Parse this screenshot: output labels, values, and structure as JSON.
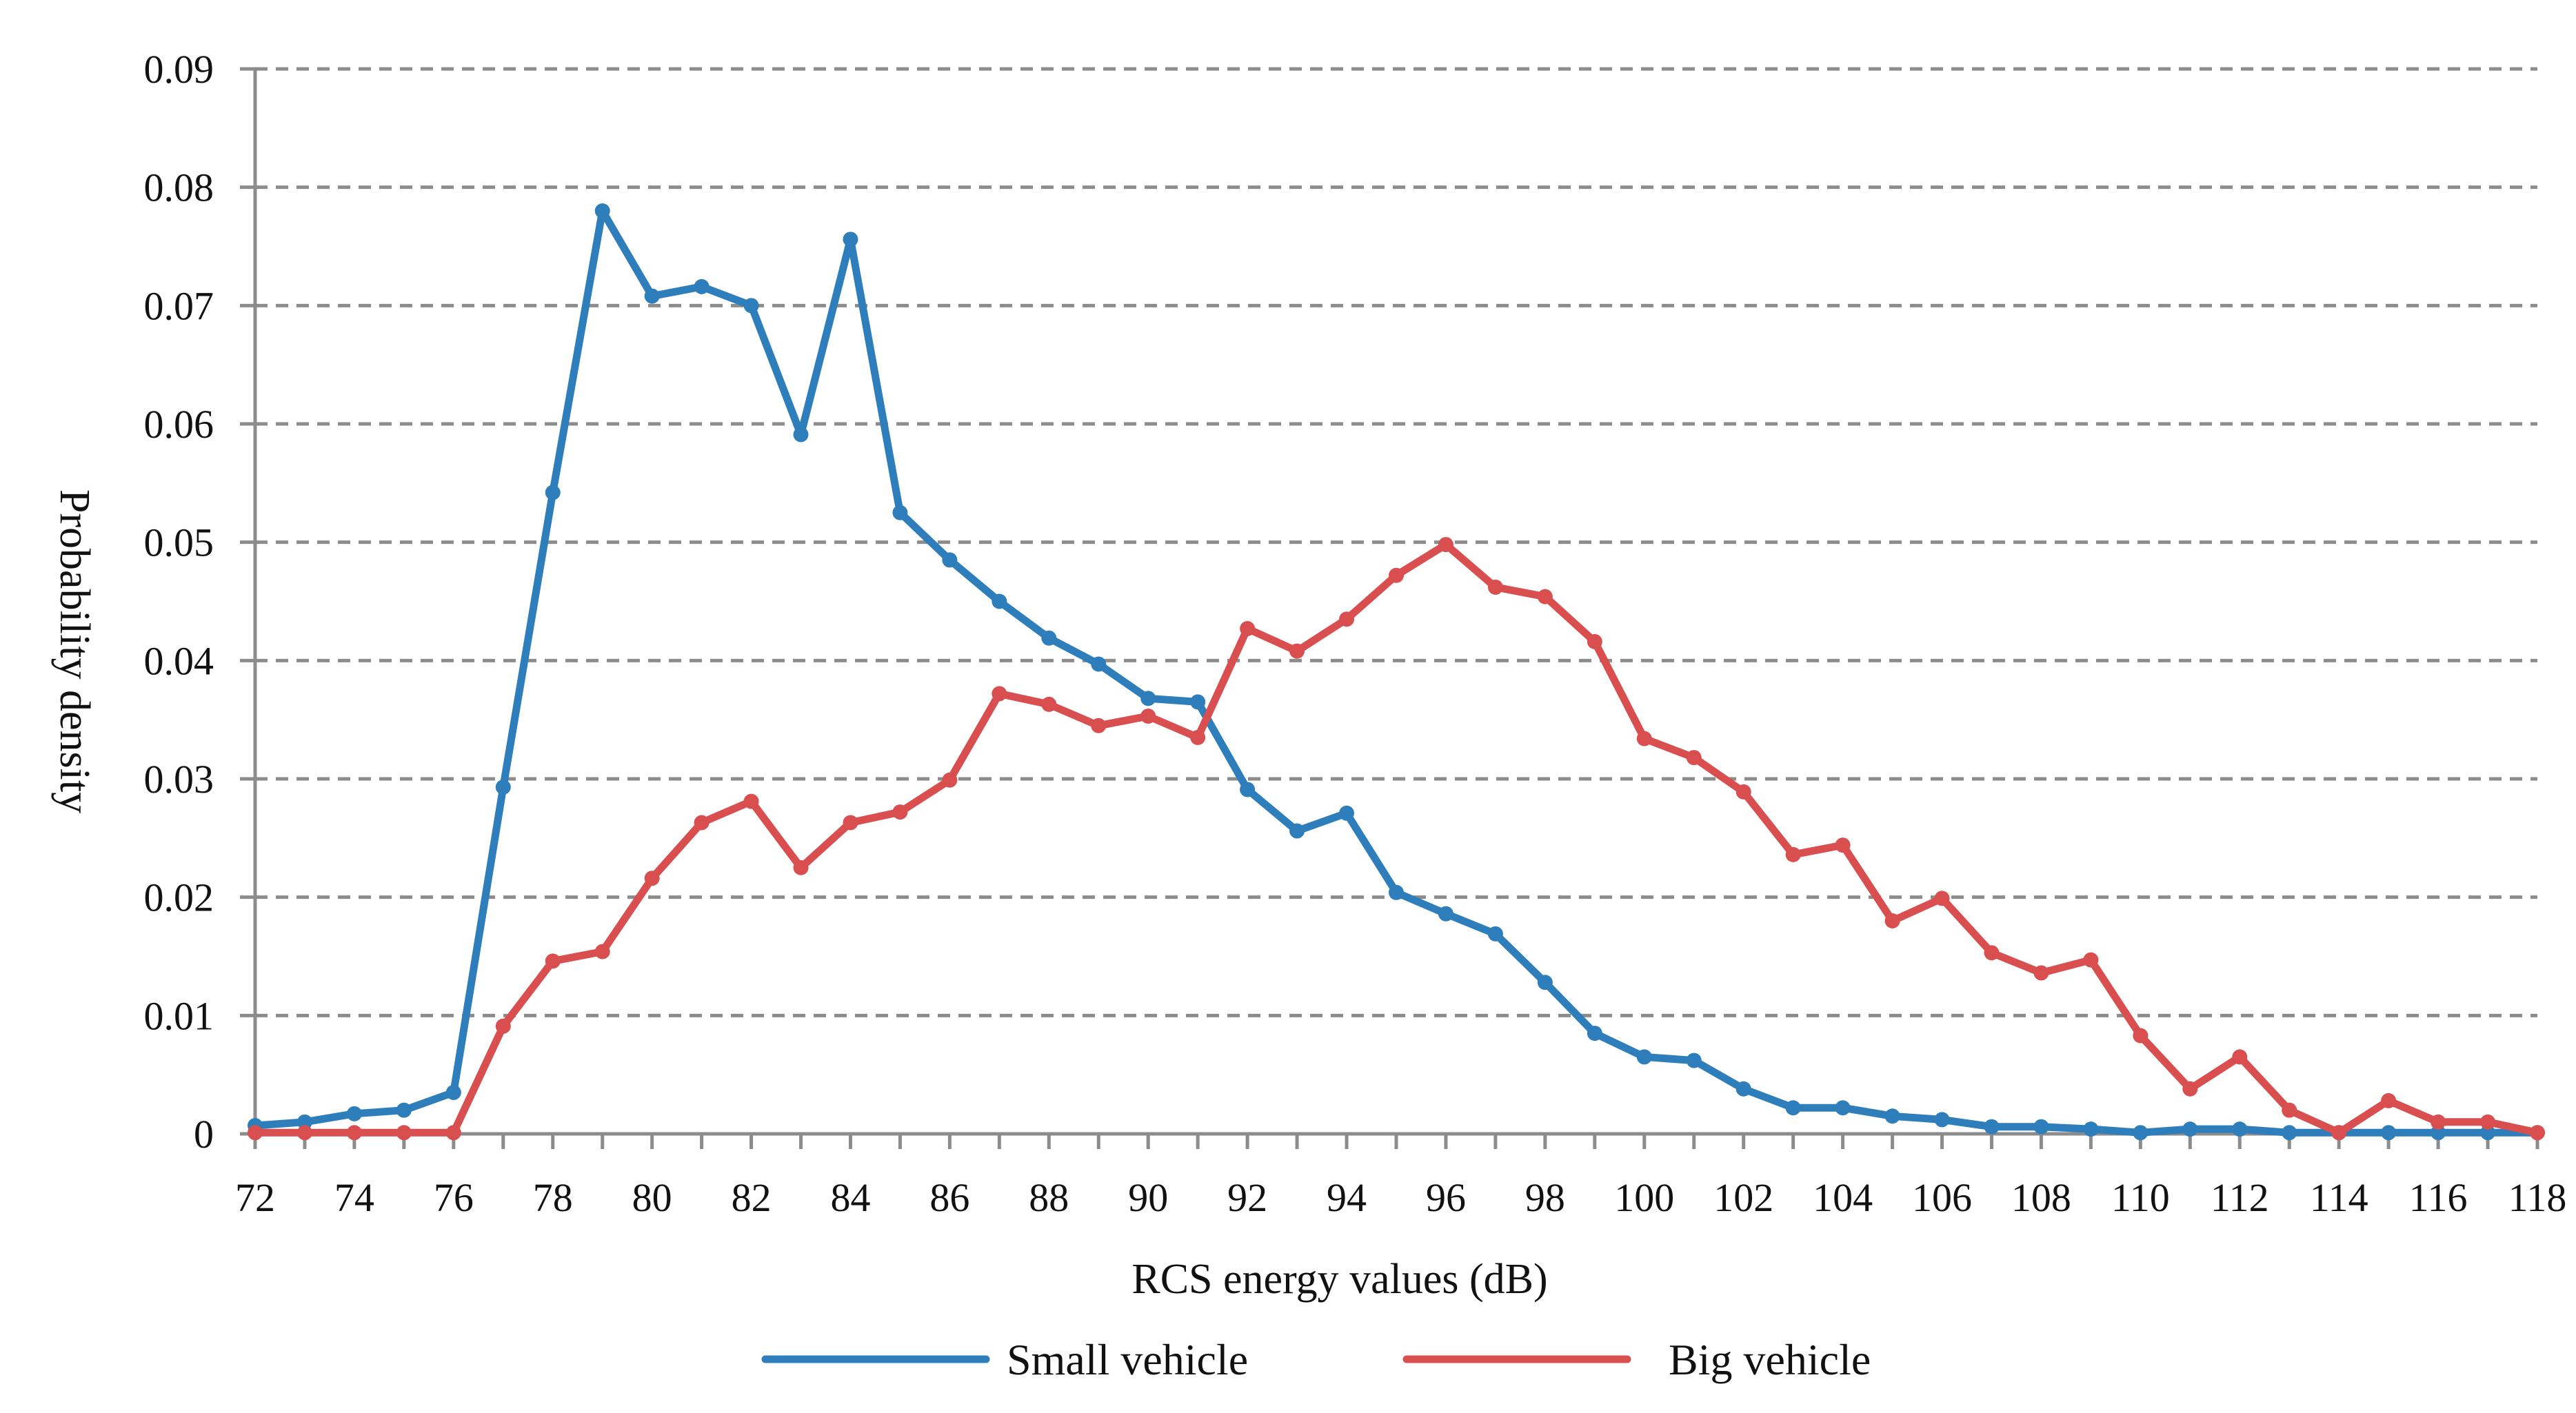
{
  "chart_data": {
    "type": "line",
    "title": "",
    "xlabel": "RCS energy values (dB)",
    "ylabel": "Probability density",
    "xlim": [
      72,
      118
    ],
    "ylim": [
      0,
      0.09
    ],
    "grid": "horizontal-dashed",
    "legend_position": "bottom-center",
    "x_ticks": [
      "72",
      "74",
      "76",
      "78",
      "80",
      "82",
      "84",
      "86",
      "88",
      "90",
      "92",
      "94",
      "96",
      "98",
      "100",
      "102",
      "104",
      "106",
      "108",
      "110",
      "112",
      "114",
      "116",
      "118"
    ],
    "y_ticks": [
      "0",
      "0.01",
      "0.02",
      "0.03",
      "0.04",
      "0.05",
      "0.06",
      "0.07",
      "0.08",
      "0.09"
    ],
    "x": [
      72,
      73,
      74,
      75,
      76,
      77,
      78,
      79,
      80,
      81,
      82,
      83,
      84,
      85,
      86,
      87,
      88,
      89,
      90,
      91,
      92,
      93,
      94,
      95,
      96,
      97,
      98,
      99,
      100,
      101,
      102,
      103,
      104,
      105,
      106,
      107,
      108,
      109,
      110,
      111,
      112,
      113,
      114,
      115,
      116,
      117,
      118
    ],
    "series": [
      {
        "name": "Small vehicle",
        "color": "#2e7ebc",
        "values": [
          0.0007,
          0.001,
          0.0017,
          0.002,
          0.0035,
          0.0293,
          0.0542,
          0.078,
          0.0708,
          0.0716,
          0.07,
          0.0591,
          0.0756,
          0.0525,
          0.0485,
          0.045,
          0.0419,
          0.0397,
          0.0368,
          0.0365,
          0.0291,
          0.0256,
          0.0271,
          0.0204,
          0.0186,
          0.0169,
          0.0128,
          0.0085,
          0.0065,
          0.0062,
          0.0038,
          0.0022,
          0.0022,
          0.0015,
          0.0012,
          0.0006,
          0.0006,
          0.0004,
          0.0001,
          0.0004,
          0.0004,
          0.0001,
          0.0001,
          0.0001,
          0.0001,
          0.0001,
          0.0001
        ]
      },
      {
        "name": "Big vehicle",
        "color": "#d94f4f",
        "values": [
          0.0001,
          0.0001,
          0.0001,
          0.0001,
          0.0001,
          0.0091,
          0.0146,
          0.0154,
          0.0216,
          0.0263,
          0.0281,
          0.0225,
          0.0263,
          0.0272,
          0.0299,
          0.0372,
          0.0363,
          0.0345,
          0.0353,
          0.0335,
          0.0427,
          0.0408,
          0.0435,
          0.0472,
          0.0498,
          0.0462,
          0.0454,
          0.0416,
          0.0334,
          0.0318,
          0.0289,
          0.0236,
          0.0244,
          0.018,
          0.0199,
          0.0153,
          0.0136,
          0.0147,
          0.0083,
          0.0038,
          0.0065,
          0.002,
          0.0001,
          0.0028,
          0.001,
          0.001,
          0.0001
        ]
      }
    ]
  }
}
